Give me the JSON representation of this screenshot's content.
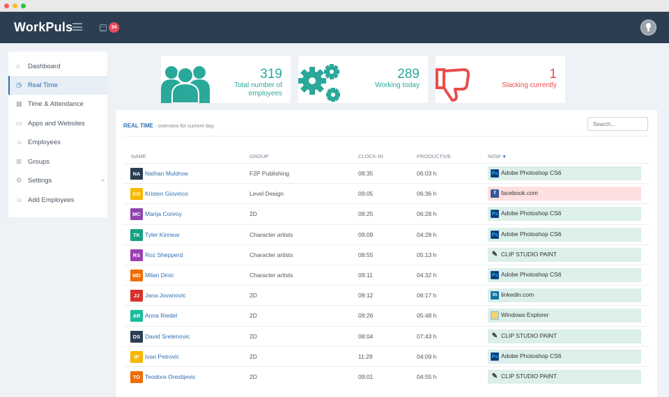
{
  "app": {
    "logo": "WorkPuls",
    "calendar_badge": "34"
  },
  "sidebar": {
    "items": [
      {
        "label": "Dashboard",
        "icon": "home-icon",
        "glyph": "⌂"
      },
      {
        "label": "Real Time",
        "icon": "clock-icon",
        "glyph": "◷"
      },
      {
        "label": "Time & Attendance",
        "icon": "calendar-icon",
        "glyph": "▦"
      },
      {
        "label": "Apps and Websites",
        "icon": "monitor-icon",
        "glyph": "▭"
      },
      {
        "label": "Employees",
        "icon": "user-icon",
        "glyph": "☺"
      },
      {
        "label": "Groups",
        "icon": "grid-icon",
        "glyph": "⊞"
      },
      {
        "label": "Settings",
        "icon": "gear-icon",
        "glyph": "⚙",
        "chevron": "<"
      },
      {
        "label": "Add Employees",
        "icon": "add-user-icon",
        "glyph": "☺"
      }
    ]
  },
  "stats": [
    {
      "value": "319",
      "label": "Total number of employees",
      "color": "#2aa89a"
    },
    {
      "value": "289",
      "label": "Working today",
      "color": "#2aa89a"
    },
    {
      "value": "1",
      "label": "Slacking currently",
      "color": "#ea4d4d"
    }
  ],
  "panel": {
    "title": "REAL TIME",
    "subtitle": "- overview for current day",
    "search_placeholder": "Search..."
  },
  "table": {
    "headers": {
      "name": "NAME",
      "group": "GROUP",
      "clockin": "CLOCK-IN",
      "productive": "PRODUCTIVE",
      "now": "NOW"
    },
    "rows": [
      {
        "initials": "NA",
        "color": "#2c3e52",
        "name": "Nathan Muldrow",
        "group": "F2P Publishing",
        "clockin": "08:35",
        "productive": "06:03 h",
        "app": "Adobe Photoshop CS6",
        "app_icon": "photoshop-icon",
        "glyph": "Ps",
        "bad": false
      },
      {
        "initials": "KG",
        "color": "#f5b800",
        "name": "Kristen Giovinco",
        "group": "Level Design",
        "clockin": "09:05",
        "productive": "06:36 h",
        "app": "facebook.com",
        "app_icon": "facebook-icon",
        "glyph": "f",
        "bad": true
      },
      {
        "initials": "MC",
        "color": "#8e44ad",
        "name": "Marija Conroy",
        "group": "2D",
        "clockin": "08:25",
        "productive": "06:28 h",
        "app": "Adobe Photoshop CS6",
        "app_icon": "photoshop-icon",
        "glyph": "Ps",
        "bad": false
      },
      {
        "initials": "TK",
        "color": "#16a085",
        "name": "Tyler Kinnear",
        "group": "Character artists",
        "clockin": "09:09",
        "productive": "04:28 h",
        "app": "Adobe Photoshop CS6",
        "app_icon": "photoshop-icon",
        "glyph": "Ps",
        "bad": false
      },
      {
        "initials": "RS",
        "color": "#9b3fb3",
        "name": "Roz Shepperd",
        "group": "Character artists",
        "clockin": "08:55",
        "productive": "05:13 h",
        "app": "CLIP STUDIO PAINT",
        "app_icon": "clip-studio-icon",
        "glyph": "✎",
        "bad": false
      },
      {
        "initials": "MD",
        "color": "#ee6c00",
        "name": "Milan Dinic",
        "group": "Character artists",
        "clockin": "09:11",
        "productive": "04:32 h",
        "app": "Adobe Photoshop CS6",
        "app_icon": "photoshop-icon",
        "glyph": "Ps",
        "bad": false
      },
      {
        "initials": "JJ",
        "color": "#d6312c",
        "name": "Jana Jovanovic",
        "group": "2D",
        "clockin": "09:12",
        "productive": "06:17 h",
        "app": "linkedin.com",
        "app_icon": "linkedin-icon",
        "glyph": "in",
        "bad": false
      },
      {
        "initials": "AR",
        "color": "#1abc9c",
        "name": "Anna Riedel",
        "group": "2D",
        "clockin": "09:26",
        "productive": "05:48 h",
        "app": "Windows Explorer",
        "app_icon": "folder-icon",
        "glyph": "",
        "bad": false
      },
      {
        "initials": "DS",
        "color": "#2c3e52",
        "name": "David Sretenovic",
        "group": "2D",
        "clockin": "08:04",
        "productive": "07:43 h",
        "app": "CLIP STUDIO PAINT",
        "app_icon": "clip-studio-icon",
        "glyph": "✎",
        "bad": false
      },
      {
        "initials": "IP",
        "color": "#f5b800",
        "name": "Ivan Petrovic",
        "group": "2D",
        "clockin": "11:29",
        "productive": "04:09 h",
        "app": "Adobe Photoshop CS6",
        "app_icon": "photoshop-icon",
        "glyph": "Ps",
        "bad": false
      },
      {
        "initials": "TO",
        "color": "#ee6c00",
        "name": "Teodora Orestijevic",
        "group": "2D",
        "clockin": "09:01",
        "productive": "04:55 h",
        "app": "CLIP STUDIO PAINT",
        "app_icon": "clip-studio-icon",
        "glyph": "✎",
        "bad": false
      }
    ]
  }
}
